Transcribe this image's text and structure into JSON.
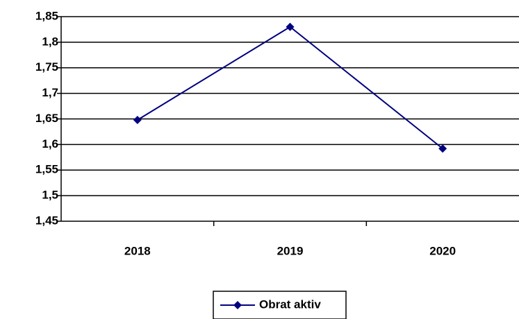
{
  "chart_data": {
    "type": "line",
    "categories": [
      "2018",
      "2019",
      "2020"
    ],
    "series": [
      {
        "name": "Obrat aktiv",
        "color": "#000080",
        "values": [
          1.648,
          1.83,
          1.592
        ]
      }
    ],
    "ylim": [
      1.45,
      1.85
    ],
    "yticks": [
      {
        "value": 1.45,
        "label": "1,45"
      },
      {
        "value": 1.5,
        "label": "1,5"
      },
      {
        "value": 1.55,
        "label": "1,55"
      },
      {
        "value": 1.6,
        "label": "1,6"
      },
      {
        "value": 1.65,
        "label": "1,65"
      },
      {
        "value": 1.7,
        "label": "1,7"
      },
      {
        "value": 1.75,
        "label": "1,75"
      },
      {
        "value": 1.8,
        "label": "1,8"
      },
      {
        "value": 1.85,
        "label": "1,85"
      }
    ],
    "grid": true,
    "legend": "bottom"
  }
}
